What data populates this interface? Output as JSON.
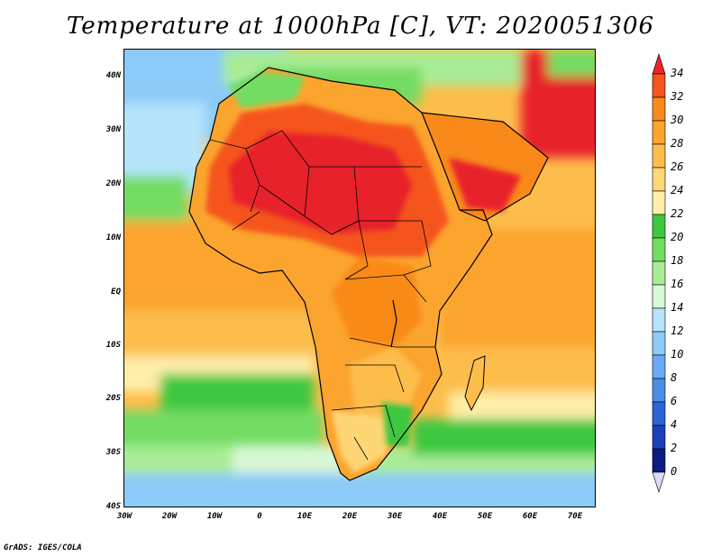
{
  "title": "Temperature at 1000hPa [C], VT: 2020051306",
  "credit": "GrADS: IGES/COLA",
  "lat_ticks": [
    "40N",
    "30N",
    "20N",
    "10N",
    "EQ",
    "10S",
    "20S",
    "30S",
    "40S"
  ],
  "lon_ticks": [
    "30W",
    "20W",
    "10W",
    "0",
    "10E",
    "20E",
    "30E",
    "40E",
    "50E",
    "60E",
    "70E"
  ],
  "colorbar": {
    "labels": [
      "34",
      "32",
      "30",
      "28",
      "26",
      "24",
      "22",
      "20",
      "18",
      "16",
      "14",
      "12",
      "10",
      "8",
      "6",
      "4",
      "2",
      "0"
    ],
    "colors": [
      "#e8242a",
      "#f5541e",
      "#f98a19",
      "#fba42e",
      "#fdbd4b",
      "#fed675",
      "#feeea7",
      "#3dc840",
      "#73dc62",
      "#a9ec95",
      "#d8f8d6",
      "#b5e4fb",
      "#8ccaf7",
      "#6aaaf4",
      "#4c8be8",
      "#2c64d6",
      "#1c40b8",
      "#0c1a82"
    ],
    "under_color": "#d8dcf4"
  }
}
